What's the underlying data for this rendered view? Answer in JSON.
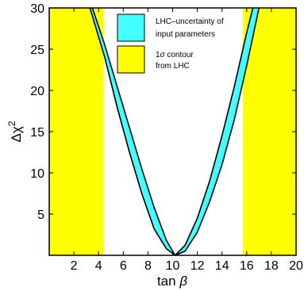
{
  "chart_data": {
    "type": "area",
    "xlabel_text": "tan",
    "xlabel_symbol": "β",
    "ylabel_text": "Δχ",
    "ylabel_sup": "2",
    "xlim": [
      0,
      20
    ],
    "ylim": [
      0,
      30
    ],
    "x_ticks": [
      2,
      4,
      6,
      8,
      10,
      12,
      14,
      16,
      18,
      20
    ],
    "y_ticks": [
      5,
      10,
      15,
      20,
      25,
      30
    ],
    "grid": false,
    "legend_position": "top-right",
    "colors": {
      "band": "#44ffff",
      "sigma": "#ffff00",
      "outline": "#000000"
    },
    "sigma_regions": [
      {
        "x_from": 0,
        "x_to": 4.4
      },
      {
        "x_from": 15.7,
        "x_to": 20
      }
    ],
    "band": {
      "name": "LHC–uncertainty of input parameters",
      "upper": [
        [
          3.3,
          30
        ],
        [
          4.5,
          24
        ],
        [
          5.5,
          18
        ],
        [
          6.5,
          12.5
        ],
        [
          7.5,
          7.5
        ],
        [
          8.5,
          3.2
        ],
        [
          9.5,
          0.8
        ],
        [
          10.2,
          0.0
        ],
        [
          11.0,
          1.2
        ],
        [
          12.0,
          4.5
        ],
        [
          13.0,
          9.0
        ],
        [
          14.0,
          14.5
        ],
        [
          15.0,
          20.5
        ],
        [
          16.0,
          27.0
        ],
        [
          16.5,
          30
        ]
      ],
      "lower": [
        [
          3.5,
          30
        ],
        [
          4.5,
          25.5
        ],
        [
          5.5,
          20.5
        ],
        [
          6.5,
          15.5
        ],
        [
          7.5,
          10.5
        ],
        [
          8.5,
          5.8
        ],
        [
          9.5,
          1.8
        ],
        [
          10.2,
          0.0
        ],
        [
          11.0,
          0.5
        ],
        [
          12.0,
          2.8
        ],
        [
          13.0,
          6.5
        ],
        [
          14.0,
          11.0
        ],
        [
          15.0,
          16.5
        ],
        [
          16.0,
          23.0
        ],
        [
          17.0,
          30
        ]
      ]
    },
    "legend": [
      {
        "label_lines": [
          "LHC–uncertainty  of",
          "input parameters"
        ],
        "color": "#44ffff"
      },
      {
        "sigma_symbol": "σ",
        "label_prefix": "1",
        "label_suffix": " contour",
        "label_line2": "from LHC",
        "color": "#ffff00"
      }
    ]
  }
}
